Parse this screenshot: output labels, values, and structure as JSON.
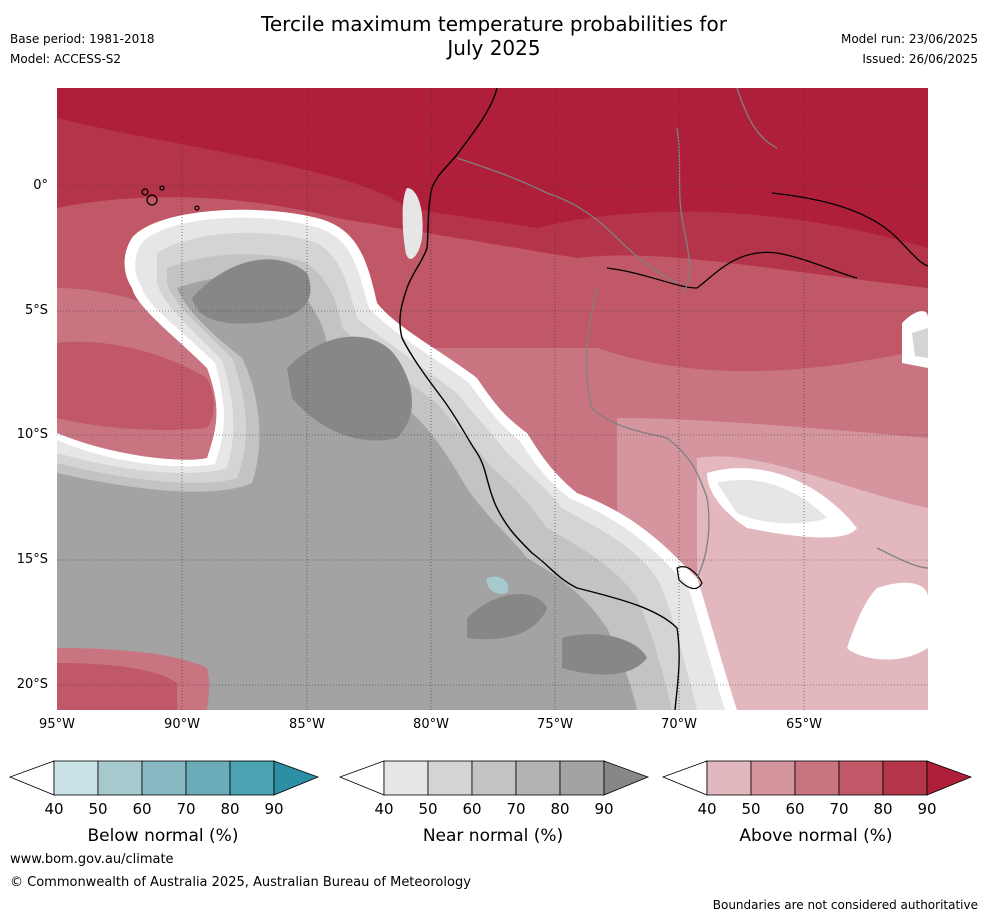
{
  "header": {
    "title_line1": "Tercile maximum temperature probabilities for",
    "title_line2": "July 2025",
    "base_period": "Base period: 1981-2018",
    "model": "Model: ACCESS-S2",
    "model_run": "Model run: 23/06/2025",
    "issued": "Issued: 26/06/2025"
  },
  "map": {
    "lat_labels": [
      "0°",
      "5°S",
      "10°S",
      "15°S",
      "20°S"
    ],
    "lon_labels": [
      "95°W",
      "90°W",
      "85°W",
      "80°W",
      "75°W",
      "70°W",
      "65°W"
    ]
  },
  "colorbars": {
    "ticks": [
      "40",
      "50",
      "60",
      "70",
      "80",
      "90"
    ],
    "below": {
      "title": "Below normal (%)",
      "colors": [
        "#ffffff",
        "#c9e2e6",
        "#a6c9ce",
        "#88b9c3",
        "#6aacb8",
        "#4aa2b2",
        "#2d8fa3"
      ]
    },
    "near": {
      "title": "Near normal (%)",
      "colors": [
        "#ffffff",
        "#e6e6e6",
        "#d4d4d4",
        "#c3c3c3",
        "#b3b3b3",
        "#a3a3a3",
        "#878787"
      ]
    },
    "above": {
      "title": "Above normal (%)",
      "colors": [
        "#ffffff",
        "#e2b8be",
        "#d4959e",
        "#c87581",
        "#c05867",
        "#b43449",
        "#b01f3a"
      ]
    }
  },
  "footer": {
    "website": "www.bom.gov.au/climate",
    "copyright": "© Commonwealth of Australia 2025, Australian Bureau of Meteorology",
    "disclaimer": "Boundaries are not considered authoritative"
  }
}
